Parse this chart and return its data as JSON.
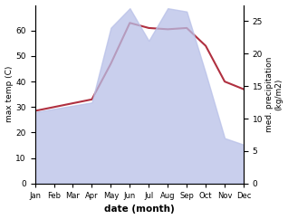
{
  "months": [
    "Jan",
    "Feb",
    "Mar",
    "Apr",
    "May",
    "Jun",
    "Jul",
    "Aug",
    "Sep",
    "Oct",
    "Nov",
    "Dec"
  ],
  "month_indices": [
    1,
    2,
    3,
    4,
    5,
    6,
    7,
    8,
    9,
    10,
    11,
    12
  ],
  "temp_max": [
    28.5,
    30.0,
    31.5,
    33.0,
    47.0,
    63.0,
    61.0,
    60.5,
    61.0,
    54.0,
    40.0,
    37.0
  ],
  "precipitation": [
    11,
    11.5,
    12,
    12.5,
    24,
    27,
    22,
    27,
    26.5,
    17,
    7,
    6
  ],
  "temp_ylim": [
    0,
    70
  ],
  "precip_ylim": [
    0,
    27.5
  ],
  "temp_yticks": [
    0,
    10,
    20,
    30,
    40,
    50,
    60
  ],
  "precip_yticks": [
    0,
    5,
    10,
    15,
    20,
    25
  ],
  "line_color": "#b03040",
  "fill_color": "#b8c0e8",
  "fill_alpha": 0.75,
  "ylabel_left": "max temp (C)",
  "ylabel_right": "med. precipitation\n(kg/m2)",
  "xlabel": "date (month)",
  "background_color": "#ffffff"
}
